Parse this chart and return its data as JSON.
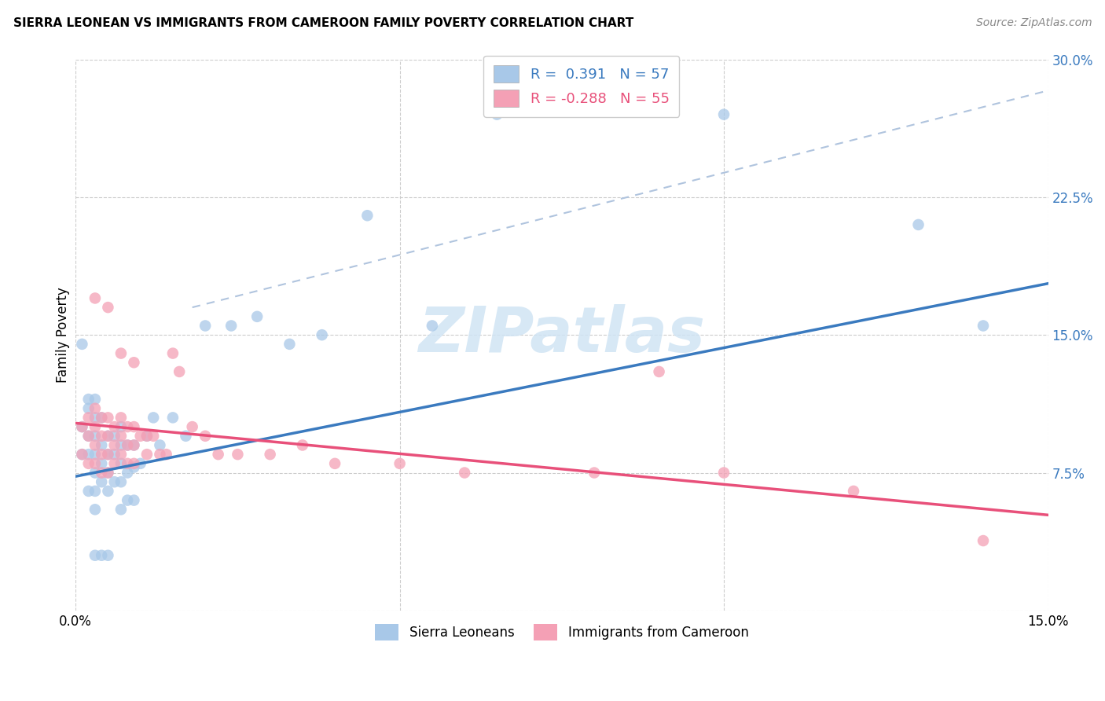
{
  "title": "SIERRA LEONEAN VS IMMIGRANTS FROM CAMEROON FAMILY POVERTY CORRELATION CHART",
  "source": "Source: ZipAtlas.com",
  "xlabel": "",
  "ylabel": "Family Poverty",
  "xlim": [
    0.0,
    0.15
  ],
  "ylim": [
    0.0,
    0.3
  ],
  "xticks": [
    0.0,
    0.05,
    0.1,
    0.15
  ],
  "yticks": [
    0.0,
    0.075,
    0.15,
    0.225,
    0.3
  ],
  "xticklabels": [
    "0.0%",
    "",
    "",
    "15.0%"
  ],
  "yticklabels": [
    "",
    "7.5%",
    "15.0%",
    "22.5%",
    "30.0%"
  ],
  "legend_R1": "R =  0.391",
  "legend_N1": "N = 57",
  "legend_R2": "R = -0.288",
  "legend_N2": "N = 55",
  "color_blue": "#a8c8e8",
  "color_pink": "#f4a0b5",
  "color_line_blue": "#3a7abf",
  "color_line_pink": "#e8507a",
  "color_dashed": "#b0c4de",
  "watermark_color": "#d0e4f4",
  "blue_line_x0": 0.0,
  "blue_line_y0": 0.073,
  "blue_line_x1": 0.15,
  "blue_line_y1": 0.178,
  "pink_line_x0": 0.0,
  "pink_line_y0": 0.102,
  "pink_line_x1": 0.15,
  "pink_line_y1": 0.052,
  "dash_line_x0": 0.018,
  "dash_line_y0": 0.165,
  "dash_line_x1": 0.15,
  "dash_line_y1": 0.283,
  "sierra_x": [
    0.001,
    0.001,
    0.001,
    0.002,
    0.002,
    0.002,
    0.002,
    0.002,
    0.003,
    0.003,
    0.003,
    0.003,
    0.003,
    0.003,
    0.003,
    0.003,
    0.004,
    0.004,
    0.004,
    0.004,
    0.004,
    0.005,
    0.005,
    0.005,
    0.005,
    0.005,
    0.006,
    0.006,
    0.006,
    0.007,
    0.007,
    0.007,
    0.007,
    0.007,
    0.008,
    0.008,
    0.008,
    0.009,
    0.009,
    0.009,
    0.01,
    0.011,
    0.012,
    0.013,
    0.015,
    0.017,
    0.02,
    0.024,
    0.028,
    0.033,
    0.038,
    0.045,
    0.055,
    0.065,
    0.1,
    0.13,
    0.14
  ],
  "sierra_y": [
    0.145,
    0.1,
    0.085,
    0.115,
    0.11,
    0.095,
    0.085,
    0.065,
    0.115,
    0.105,
    0.095,
    0.085,
    0.075,
    0.065,
    0.055,
    0.03,
    0.105,
    0.09,
    0.08,
    0.07,
    0.03,
    0.095,
    0.085,
    0.075,
    0.065,
    0.03,
    0.095,
    0.085,
    0.07,
    0.1,
    0.09,
    0.08,
    0.07,
    0.055,
    0.09,
    0.075,
    0.06,
    0.09,
    0.078,
    0.06,
    0.08,
    0.095,
    0.105,
    0.09,
    0.105,
    0.095,
    0.155,
    0.155,
    0.16,
    0.145,
    0.15,
    0.215,
    0.155,
    0.27,
    0.27,
    0.21,
    0.155
  ],
  "cameroon_x": [
    0.001,
    0.001,
    0.002,
    0.002,
    0.002,
    0.003,
    0.003,
    0.003,
    0.003,
    0.004,
    0.004,
    0.004,
    0.004,
    0.005,
    0.005,
    0.005,
    0.005,
    0.006,
    0.006,
    0.006,
    0.007,
    0.007,
    0.007,
    0.008,
    0.008,
    0.008,
    0.009,
    0.009,
    0.009,
    0.01,
    0.011,
    0.012,
    0.013,
    0.014,
    0.015,
    0.016,
    0.018,
    0.02,
    0.022,
    0.025,
    0.03,
    0.035,
    0.04,
    0.05,
    0.06,
    0.08,
    0.09,
    0.1,
    0.12,
    0.14,
    0.003,
    0.005,
    0.007,
    0.009,
    0.011
  ],
  "cameroon_y": [
    0.1,
    0.085,
    0.105,
    0.095,
    0.08,
    0.11,
    0.1,
    0.09,
    0.08,
    0.105,
    0.095,
    0.085,
    0.075,
    0.105,
    0.095,
    0.085,
    0.075,
    0.1,
    0.09,
    0.08,
    0.105,
    0.095,
    0.085,
    0.1,
    0.09,
    0.08,
    0.1,
    0.09,
    0.08,
    0.095,
    0.095,
    0.095,
    0.085,
    0.085,
    0.14,
    0.13,
    0.1,
    0.095,
    0.085,
    0.085,
    0.085,
    0.09,
    0.08,
    0.08,
    0.075,
    0.075,
    0.13,
    0.075,
    0.065,
    0.038,
    0.17,
    0.165,
    0.14,
    0.135,
    0.085
  ]
}
